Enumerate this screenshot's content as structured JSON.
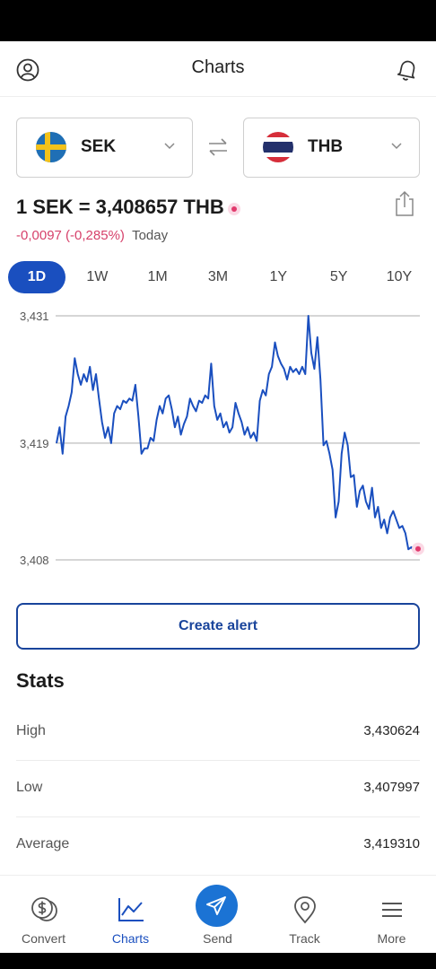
{
  "header": {
    "title": "Charts"
  },
  "from_currency": {
    "code": "SEK"
  },
  "to_currency": {
    "code": "THB"
  },
  "rate": {
    "text": "1 SEK = 3,408657 THB",
    "change": "-0,0097 (-0,285%)",
    "change_period": "Today"
  },
  "periods": [
    {
      "label": "1D",
      "active": true
    },
    {
      "label": "1W",
      "active": false
    },
    {
      "label": "1M",
      "active": false
    },
    {
      "label": "3M",
      "active": false
    },
    {
      "label": "1Y",
      "active": false
    },
    {
      "label": "5Y",
      "active": false
    },
    {
      "label": "10Y",
      "active": false
    }
  ],
  "chart_data": {
    "type": "line",
    "yticks": [
      "3,431",
      "3,419",
      "3,408"
    ],
    "ylim": [
      3.408,
      3.431
    ],
    "grid": true,
    "line_color": "#1a4fbf",
    "marker_color": "#e13a6d",
    "series": [
      {
        "values": [
          3.419,
          3.4205,
          3.418,
          3.4215,
          3.4225,
          3.4238,
          3.427,
          3.4255,
          3.4245,
          3.4255,
          3.4248,
          3.4262,
          3.424,
          3.4255,
          3.4232,
          3.421,
          3.4195,
          3.4205,
          3.419,
          3.4218,
          3.4225,
          3.4222,
          3.423,
          3.4228,
          3.4232,
          3.423,
          3.4245,
          3.4215,
          3.418,
          3.4185,
          3.4185,
          3.4195,
          3.4192,
          3.4212,
          3.4225,
          3.4218,
          3.4232,
          3.4235,
          3.4222,
          3.4205,
          3.4215,
          3.4198,
          3.4208,
          3.4215,
          3.4232,
          3.4225,
          3.422,
          3.423,
          3.4228,
          3.4235,
          3.4232,
          3.4265,
          3.4225,
          3.4212,
          3.4218,
          3.4205,
          3.421,
          3.42,
          3.4205,
          3.4228,
          3.4218,
          3.421,
          3.4198,
          3.4205,
          3.4195,
          3.42,
          3.4192,
          3.423,
          3.424,
          3.4235,
          3.4255,
          3.4262,
          3.4285,
          3.4272,
          3.4265,
          3.426,
          3.425,
          3.4262,
          3.4257,
          3.426,
          3.4255,
          3.4262,
          3.4255,
          3.431,
          3.4275,
          3.426,
          3.429,
          3.425,
          3.4188,
          3.4192,
          3.418,
          3.4165,
          3.412,
          3.4135,
          3.418,
          3.42,
          3.4188,
          3.4158,
          3.416,
          3.413,
          3.4145,
          3.415,
          3.4135,
          3.4128,
          3.4148,
          3.412,
          3.413,
          3.411,
          3.4118,
          3.4105,
          3.412,
          3.4126,
          3.4118,
          3.411,
          3.4112,
          3.4105,
          3.409,
          3.4092,
          3.4087
        ]
      }
    ]
  },
  "alert_button": {
    "label": "Create alert"
  },
  "stats": {
    "title": "Stats",
    "rows": [
      {
        "label": "High",
        "value": "3,430624"
      },
      {
        "label": "Low",
        "value": "3,407997"
      },
      {
        "label": "Average",
        "value": "3,419310"
      }
    ]
  },
  "tabs": [
    {
      "label": "Convert",
      "icon": "dollar-coins-icon"
    },
    {
      "label": "Charts",
      "icon": "line-chart-icon",
      "active": true
    },
    {
      "label": "Send",
      "icon": "paper-plane-icon"
    },
    {
      "label": "Track",
      "icon": "location-pin-icon"
    },
    {
      "label": "More",
      "icon": "hamburger-menu-icon"
    }
  ]
}
